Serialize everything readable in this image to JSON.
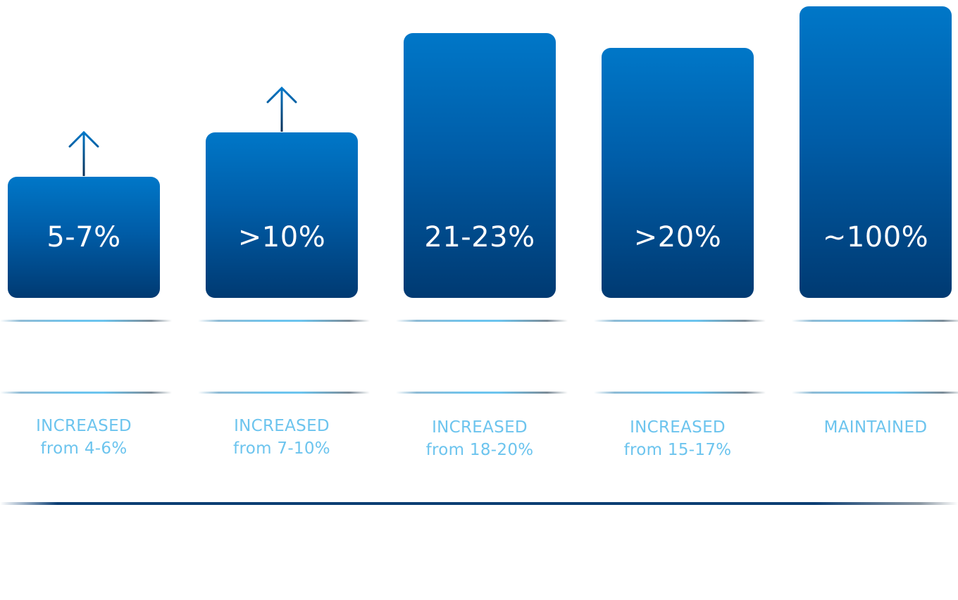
{
  "chart_data": {
    "type": "bar",
    "categories": [
      "5-7%",
      ">10%",
      "21-23%",
      ">20%",
      "~100%"
    ],
    "values": [
      6,
      10,
      22,
      20,
      100
    ],
    "bar_labels": [
      "5-7%",
      ">10%",
      "21-23%",
      ">20%",
      "~100%"
    ],
    "increase_arrows": [
      true,
      true,
      false,
      false,
      false
    ],
    "captions": [
      {
        "line1": "INCREASED",
        "line2": "from 4-6%"
      },
      {
        "line1": "INCREASED",
        "line2": "from 7-10%"
      },
      {
        "line1": "INCREASED",
        "line2": "from 18-20%"
      },
      {
        "line1": "INCREASED",
        "line2": "from 15-17%"
      },
      {
        "line1": "MAINTAINED",
        "line2": ""
      }
    ],
    "title": "",
    "xlabel": "",
    "ylabel": "",
    "grid": false,
    "legend": "none"
  },
  "colors": {
    "bar_top": "#0077c8",
    "bar_bottom": "#003a72",
    "bar_text": "#ffffff",
    "caption_text": "#6cc4ee",
    "baseline": "#0a3d73",
    "arrow": "#0a2f55"
  }
}
